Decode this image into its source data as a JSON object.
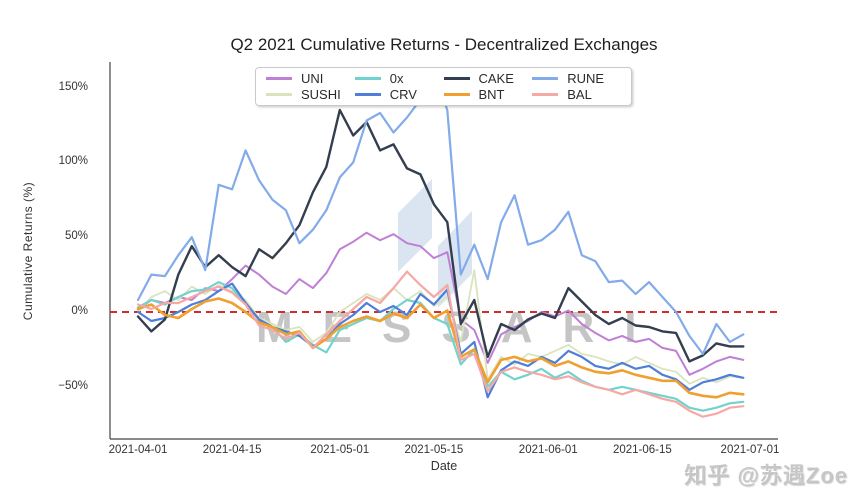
{
  "watermarks": {
    "messari": "MESSARI",
    "zhihu": "知乎 @苏遇Zoe",
    "logo_color": "#dbe5f2"
  },
  "chart_data": {
    "type": "line",
    "title": "Q2 2021 Cumulative Returns - Decentralized Exchanges",
    "xlabel": "Date",
    "ylabel": "Cumulative Returns (%)",
    "grid": false,
    "legend_position": "top-center",
    "x_start": "2021-04-01",
    "x_end": "2021-07-01",
    "ylim": [
      -80,
      175
    ],
    "y_ticks": [
      {
        "label": "150%",
        "value": 150
      },
      {
        "label": "100%",
        "value": 100
      },
      {
        "label": "50%",
        "value": 50
      },
      {
        "label": "0%",
        "value": 0
      },
      {
        "label": "−50%",
        "value": -50
      }
    ],
    "x_ticks": [
      {
        "label": "2021-04-01",
        "day": 0
      },
      {
        "label": "2021-04-15",
        "day": 14
      },
      {
        "label": "2021-05-01",
        "day": 30
      },
      {
        "label": "2021-05-15",
        "day": 44
      },
      {
        "label": "2021-06-01",
        "day": 61
      },
      {
        "label": "2021-06-15",
        "day": 75
      },
      {
        "label": "2021-07-01",
        "day": 91
      }
    ],
    "zero_line": {
      "value": 0,
      "color": "#cf2e2e",
      "style": "dashed"
    },
    "x_days": [
      0,
      2,
      4,
      6,
      8,
      10,
      12,
      14,
      16,
      18,
      20,
      22,
      24,
      26,
      28,
      30,
      32,
      34,
      36,
      38,
      40,
      42,
      44,
      46,
      48,
      50,
      52,
      54,
      56,
      58,
      60,
      62,
      64,
      66,
      68,
      70,
      72,
      74,
      76,
      78,
      80,
      82,
      84,
      86,
      88,
      90
    ],
    "series": [
      {
        "name": "UNI",
        "color": "#bf7fd4",
        "width": 2.0,
        "values": [
          2,
          8,
          6,
          10,
          8,
          16,
          14,
          22,
          31,
          25,
          17,
          12,
          22,
          16,
          26,
          42,
          47,
          53,
          48,
          52,
          46,
          44,
          36,
          40,
          -5,
          -12,
          -34,
          -15,
          -10,
          -6,
          0,
          -3,
          1,
          -8,
          -14,
          -19,
          -16,
          -20,
          -18,
          -24,
          -26,
          -42,
          -38,
          -33,
          -30,
          -32
        ]
      },
      {
        "name": "SUSHI",
        "color": "#d9e4bf",
        "width": 1.8,
        "values": [
          0,
          10,
          14,
          8,
          17,
          12,
          18,
          14,
          8,
          -4,
          -8,
          -12,
          -10,
          -20,
          -14,
          0,
          6,
          12,
          8,
          16,
          8,
          14,
          4,
          10,
          -20,
          28,
          -45,
          -30,
          -35,
          -28,
          -30,
          -26,
          -22,
          -28,
          -30,
          -33,
          -35,
          -30,
          -34,
          -38,
          -40,
          -48,
          -44,
          -47,
          -43,
          -44
        ]
      },
      {
        "name": "0x",
        "color": "#72d2cd",
        "width": 2.2,
        "values": [
          3,
          8,
          5,
          10,
          14,
          15,
          20,
          16,
          5,
          -5,
          -10,
          -20,
          -15,
          -22,
          -27,
          -12,
          -8,
          -4,
          -6,
          2,
          8,
          6,
          -4,
          -8,
          -35,
          -25,
          -50,
          -40,
          -45,
          -42,
          -38,
          -44,
          -40,
          -46,
          -50,
          -52,
          -50,
          -52,
          -54,
          -56,
          -58,
          -64,
          -66,
          -64,
          -61,
          -60
        ]
      },
      {
        "name": "CRV",
        "color": "#4d7ed8",
        "width": 2.2,
        "values": [
          0,
          -6,
          -4,
          0,
          5,
          8,
          14,
          19,
          6,
          -5,
          -10,
          -13,
          -16,
          -23,
          -18,
          -8,
          -2,
          6,
          0,
          4,
          -2,
          12,
          5,
          15,
          -28,
          -20,
          -57,
          -39,
          -33,
          -36,
          -30,
          -34,
          -26,
          -30,
          -36,
          -38,
          -34,
          -38,
          -36,
          -42,
          -45,
          -52,
          -47,
          -45,
          -42,
          -44
        ]
      },
      {
        "name": "CAKE",
        "color": "#333e4f",
        "width": 2.4,
        "values": [
          -3,
          -13,
          -5,
          25,
          44,
          30,
          38,
          30,
          24,
          42,
          36,
          46,
          58,
          80,
          97,
          135,
          118,
          127,
          108,
          112,
          96,
          92,
          72,
          60,
          -8,
          8,
          -30,
          -8,
          -12,
          -5,
          -1,
          -4,
          16,
          7,
          -2,
          -8,
          -4,
          -9,
          -10,
          -13,
          -14,
          -33,
          -29,
          -21,
          -23,
          -23
        ]
      },
      {
        "name": "BNT",
        "color": "#efa02e",
        "width": 2.6,
        "values": [
          2,
          5,
          -2,
          -4,
          2,
          7,
          9,
          6,
          0,
          -7,
          -10,
          -15,
          -13,
          -24,
          -18,
          -10,
          -6,
          -3,
          -6,
          -1,
          -4,
          5,
          -4,
          1,
          -30,
          -25,
          -47,
          -32,
          -30,
          -33,
          -31,
          -36,
          -33,
          -37,
          -40,
          -41,
          -39,
          -42,
          -44,
          -46,
          -46,
          -54,
          -56,
          -57,
          -54,
          -55
        ]
      },
      {
        "name": "RUNE",
        "color": "#83abe9",
        "width": 2.2,
        "values": [
          8,
          25,
          24,
          38,
          50,
          28,
          85,
          82,
          108,
          88,
          75,
          68,
          46,
          55,
          68,
          90,
          100,
          128,
          133,
          120,
          130,
          142,
          160,
          135,
          25,
          45,
          22,
          60,
          78,
          45,
          48,
          55,
          67,
          38,
          34,
          20,
          21,
          12,
          20,
          10,
          0,
          -16,
          -28,
          -8,
          -20,
          -15
        ]
      },
      {
        "name": "BAL",
        "color": "#f5a8a4",
        "width": 2.2,
        "values": [
          5,
          2,
          6,
          6,
          10,
          14,
          17,
          13,
          5,
          -9,
          -12,
          -18,
          -14,
          -24,
          -15,
          -6,
          2,
          10,
          6,
          16,
          27,
          18,
          10,
          18,
          -32,
          -28,
          -53,
          -40,
          -37,
          -40,
          -42,
          -45,
          -43,
          -47,
          -50,
          -52,
          -55,
          -52,
          -55,
          -58,
          -60,
          -66,
          -70,
          -68,
          -64,
          -63
        ]
      }
    ]
  }
}
